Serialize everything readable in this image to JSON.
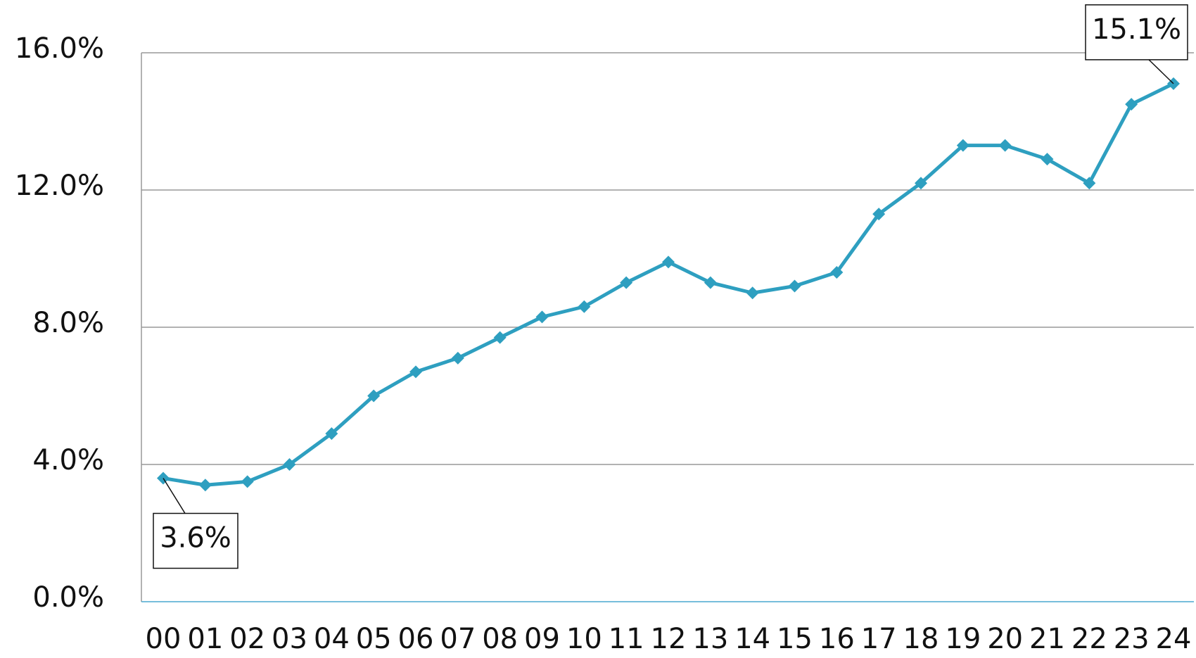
{
  "chart_data": {
    "type": "line",
    "categories": [
      "00",
      "01",
      "02",
      "03",
      "04",
      "05",
      "06",
      "07",
      "08",
      "09",
      "10",
      "11",
      "12",
      "13",
      "14",
      "15",
      "16",
      "17",
      "18",
      "19",
      "20",
      "21",
      "22",
      "23",
      "24"
    ],
    "series": [
      {
        "color": "#2e9fc0",
        "values": [
          3.6,
          3.4,
          3.5,
          4.0,
          4.9,
          6.0,
          6.7,
          7.1,
          7.7,
          8.3,
          8.6,
          9.3,
          9.9,
          9.3,
          9.0,
          9.2,
          9.6,
          11.3,
          12.2,
          13.3,
          13.3,
          12.9,
          12.2,
          14.5,
          15.1
        ],
        "value_labels": [
          "3.6%",
          null,
          null,
          null,
          null,
          null,
          null,
          null,
          null,
          null,
          null,
          null,
          null,
          null,
          null,
          null,
          null,
          null,
          null,
          null,
          null,
          null,
          null,
          null,
          "15.1%"
        ]
      }
    ],
    "ylim": [
      0,
      16
    ],
    "yticks": [
      {
        "value": 0,
        "label": "0.0%"
      },
      {
        "value": 4,
        "label": "4.0%"
      },
      {
        "value": 8,
        "label": "8.0%"
      },
      {
        "value": 12,
        "label": "12.0%"
      },
      {
        "value": 16,
        "label": "16.0%"
      }
    ],
    "grid": true
  }
}
